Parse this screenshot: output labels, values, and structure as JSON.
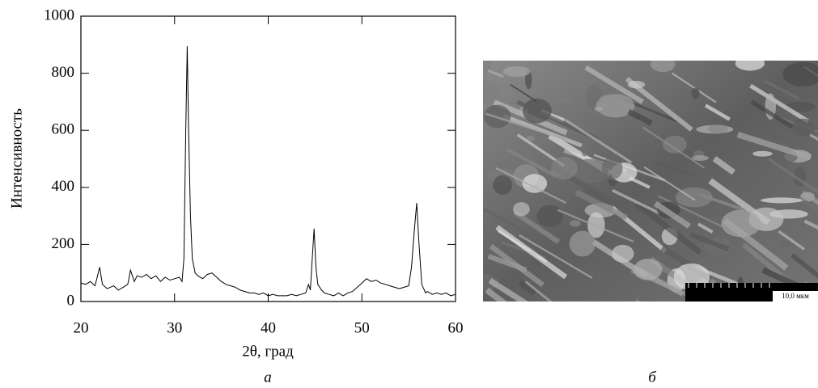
{
  "chart_data": {
    "type": "line",
    "x_label": "2θ,  град",
    "y_label": "Интенсивность",
    "caption": "а",
    "color": "#000000",
    "x": [
      20,
      20.5,
      21,
      21.5,
      22,
      22.3,
      22.8,
      23.5,
      24,
      24.5,
      25,
      25.3,
      25.7,
      26,
      26.5,
      27,
      27.5,
      28,
      28.5,
      29,
      29.5,
      30,
      30.5,
      30.8,
      31,
      31.2,
      31.35,
      31.5,
      31.7,
      31.9,
      32.2,
      32.5,
      33,
      33.5,
      34,
      34.5,
      35,
      35.5,
      36,
      36.5,
      37,
      37.5,
      38,
      38.5,
      39,
      39.5,
      40,
      40.5,
      41,
      41.5,
      42,
      42.5,
      43,
      43.5,
      44,
      44.3,
      44.5,
      44.7,
      44.9,
      45.1,
      45.3,
      45.7,
      46,
      46.5,
      47,
      47.5,
      48,
      48.5,
      49,
      49.5,
      50,
      50.5,
      51,
      51.5,
      52,
      52.5,
      53,
      53.5,
      54,
      54.5,
      55,
      55.3,
      55.6,
      55.85,
      56.1,
      56.4,
      56.8,
      57,
      57.5,
      58,
      58.5,
      59,
      59.5,
      60
    ],
    "values": [
      65,
      60,
      70,
      55,
      120,
      60,
      45,
      55,
      40,
      50,
      60,
      110,
      70,
      90,
      85,
      95,
      80,
      90,
      70,
      85,
      75,
      80,
      85,
      70,
      150,
      600,
      895,
      600,
      300,
      150,
      100,
      90,
      80,
      95,
      100,
      85,
      70,
      60,
      55,
      50,
      40,
      35,
      30,
      30,
      25,
      30,
      20,
      25,
      20,
      20,
      20,
      25,
      20,
      25,
      30,
      60,
      40,
      150,
      255,
      120,
      60,
      40,
      30,
      25,
      20,
      30,
      20,
      30,
      35,
      50,
      65,
      80,
      70,
      75,
      65,
      60,
      55,
      50,
      45,
      50,
      55,
      120,
      250,
      345,
      200,
      60,
      30,
      35,
      25,
      30,
      25,
      30,
      20,
      25
    ],
    "xlim": [
      20,
      60
    ],
    "xticks": [
      20,
      30,
      40,
      50,
      60
    ],
    "ylim": [
      0,
      1000
    ],
    "yticks": [
      0,
      200,
      400,
      600,
      800,
      1000
    ]
  },
  "image": {
    "caption": "б",
    "scale_bar": "10,0 мкм"
  }
}
